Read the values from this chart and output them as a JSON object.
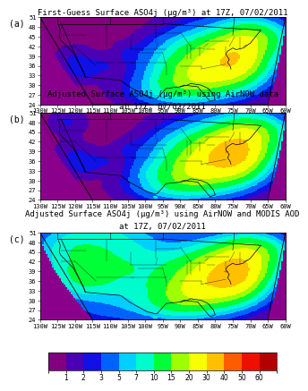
{
  "panel_a_title": "First-Guess Surface ASO4j (μg/m³) at 17Z, 07/02/2011",
  "panel_b_title1": "Adjusted Surface ASO4j (μg/m³) using AirNOW data",
  "panel_b_title2": "at 17Z, 07/02/2011",
  "panel_c_title1": "Adjusted Surface ASO4j (μg/m³) using AirNOW and MODIS AOD",
  "panel_c_title2": "at 17Z, 07/02/2011",
  "panel_labels": [
    "(a)",
    "(b)",
    "(c)"
  ],
  "colorbar_ticks": [
    1,
    2,
    3,
    5,
    7,
    10,
    15,
    20,
    30,
    40,
    50,
    60
  ],
  "bg_color": "#ffffff",
  "map_outside_color": "#ffffff",
  "title_fontsize": 6.5,
  "label_fontsize": 7.0,
  "tick_fontsize": 5.0,
  "colorbar_tick_fontsize": 5.5,
  "lon_ticks": [
    -130,
    -125,
    -120,
    -115,
    -110,
    -105,
    -100,
    -95,
    -90,
    -85,
    -80,
    -75,
    -70,
    -65,
    -60
  ],
  "lat_ticks": [
    24,
    27,
    30,
    33,
    36,
    39,
    42,
    45,
    48,
    51
  ],
  "vmin": 0,
  "vmax": 80,
  "boundary_values": [
    0,
    1,
    2,
    3,
    5,
    7,
    10,
    15,
    20,
    30,
    40,
    50,
    60,
    80
  ]
}
